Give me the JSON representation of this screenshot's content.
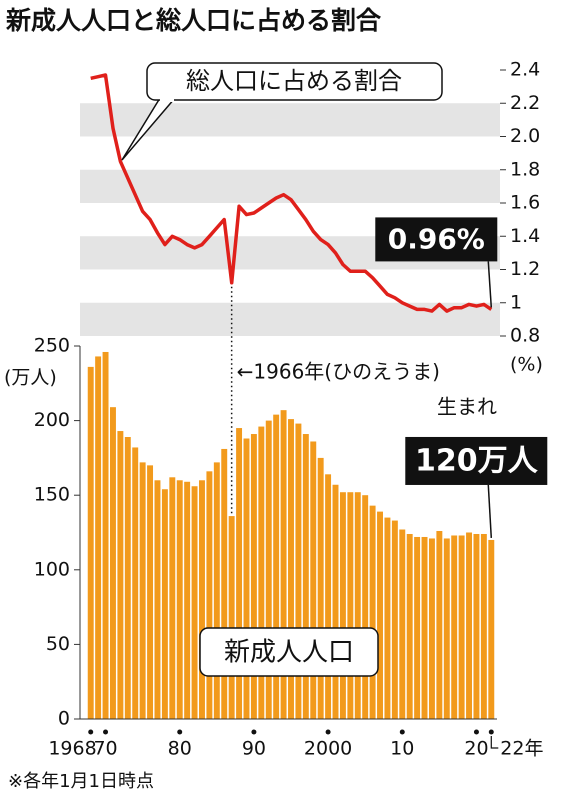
{
  "title": "新成人人口と総人口に占める割合",
  "note": "※各年1月1日時点",
  "chart_data": [
    {
      "type": "line",
      "x": [
        1968,
        1969,
        1970,
        1971,
        1972,
        1973,
        1974,
        1975,
        1976,
        1977,
        1978,
        1979,
        1980,
        1981,
        1982,
        1983,
        1984,
        1985,
        1986,
        1987,
        1988,
        1989,
        1990,
        1991,
        1992,
        1993,
        1994,
        1995,
        1996,
        1997,
        1998,
        1999,
        2000,
        2001,
        2002,
        2003,
        2004,
        2005,
        2006,
        2007,
        2008,
        2009,
        2010,
        2011,
        2012,
        2013,
        2014,
        2015,
        2016,
        2017,
        2018,
        2019,
        2020,
        2021,
        2022
      ],
      "xlim": [
        1967.5,
        2022.5
      ],
      "series": [
        {
          "name": "総人口に占める割合",
          "color": "#e0201b",
          "axis": "y2",
          "values": [
            2.35,
            2.36,
            2.37,
            2.05,
            1.85,
            1.75,
            1.65,
            1.55,
            1.5,
            1.42,
            1.35,
            1.4,
            1.38,
            1.35,
            1.33,
            1.35,
            1.4,
            1.45,
            1.5,
            1.12,
            1.58,
            1.53,
            1.54,
            1.57,
            1.6,
            1.63,
            1.65,
            1.62,
            1.56,
            1.5,
            1.43,
            1.38,
            1.35,
            1.3,
            1.23,
            1.19,
            1.19,
            1.19,
            1.15,
            1.1,
            1.05,
            1.03,
            1.0,
            0.98,
            0.96,
            0.96,
            0.95,
            0.99,
            0.95,
            0.97,
            0.97,
            0.99,
            0.98,
            0.99,
            0.96
          ],
          "value_labels": [
            null,
            null,
            null,
            null,
            null,
            null,
            null,
            null,
            null,
            null,
            null,
            null,
            null,
            null,
            null,
            null,
            null,
            null,
            null,
            null,
            null,
            null,
            null,
            null,
            null,
            null,
            null,
            null,
            null,
            null,
            null,
            null,
            null,
            null,
            null,
            null,
            null,
            null,
            null,
            null,
            null,
            null,
            null,
            null,
            null,
            null,
            null,
            null,
            null,
            null,
            null,
            null,
            null,
            null,
            "0.96%"
          ]
        }
      ],
      "y2lim": [
        0.8,
        2.4
      ],
      "y2ticks": [
        {
          "value": 0.8,
          "label": "0.8"
        },
        1,
        {
          "value": 1.2,
          "label": "1.2"
        },
        {
          "value": 1.4,
          "label": "1.4"
        },
        {
          "value": 1.6,
          "label": "1.6"
        },
        {
          "value": 1.8,
          "label": "1.8"
        },
        {
          "value": 2,
          "label": "2.0"
        },
        {
          "value": 2.2,
          "label": "2.2"
        },
        {
          "value": 2.4,
          "label": "2.4"
        }
      ],
      "y2_unit": "(%)",
      "grid_bands": true
    },
    {
      "type": "bar",
      "x": [
        1968,
        1969,
        1970,
        1971,
        1972,
        1973,
        1974,
        1975,
        1976,
        1977,
        1978,
        1979,
        1980,
        1981,
        1982,
        1983,
        1984,
        1985,
        1986,
        1987,
        1988,
        1989,
        1990,
        1991,
        1992,
        1993,
        1994,
        1995,
        1996,
        1997,
        1998,
        1999,
        2000,
        2001,
        2002,
        2003,
        2004,
        2005,
        2006,
        2007,
        2008,
        2009,
        2010,
        2011,
        2012,
        2013,
        2014,
        2015,
        2016,
        2017,
        2018,
        2019,
        2020,
        2021,
        2022
      ],
      "xlim": [
        1967.5,
        2022.5
      ],
      "xticks": [
        1968,
        {
          "value": 1970,
          "label": "70"
        },
        {
          "value": 1980,
          "label": "80"
        },
        {
          "value": 1990,
          "label": "90"
        },
        2000,
        {
          "value": 2010,
          "label": "10"
        },
        {
          "value": 2020,
          "label": "20"
        },
        {
          "value": 2022,
          "label": "22年"
        }
      ],
      "series": [
        {
          "name": "新成人人口",
          "color": "#f29a1c",
          "values": [
            236,
            243,
            246,
            209,
            193,
            189,
            182,
            172,
            170,
            160,
            154,
            162,
            160,
            159,
            156,
            160,
            166,
            172,
            181,
            136,
            195,
            188,
            191,
            196,
            200,
            204,
            207,
            201,
            198,
            191,
            186,
            175,
            164,
            157,
            152,
            152,
            152,
            150,
            143,
            139,
            135,
            133,
            127,
            124,
            122,
            122,
            121,
            126,
            121,
            123,
            123,
            125,
            124,
            124,
            120
          ],
          "value_labels": [
            null,
            null,
            null,
            null,
            null,
            null,
            null,
            null,
            null,
            null,
            null,
            null,
            null,
            null,
            null,
            null,
            null,
            null,
            null,
            null,
            null,
            null,
            null,
            null,
            null,
            null,
            null,
            null,
            null,
            null,
            null,
            null,
            null,
            null,
            null,
            null,
            null,
            null,
            null,
            null,
            null,
            null,
            null,
            null,
            null,
            null,
            null,
            null,
            null,
            null,
            null,
            null,
            null,
            null,
            "120万人"
          ]
        }
      ],
      "ylim": [
        0,
        250
      ],
      "yticks": [
        0,
        50,
        100,
        150,
        200,
        250
      ],
      "y_unit": "(万人)",
      "annotation": [
        "←1966年(ひのえうま)",
        "生まれ"
      ]
    }
  ]
}
